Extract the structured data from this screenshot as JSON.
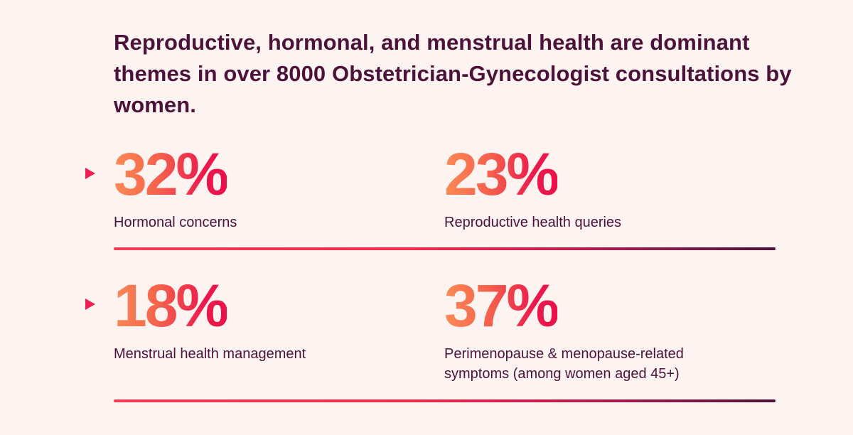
{
  "headline": "Reproductive, hormonal, and menstrual health are dominant themes in over 8000 Obstetrician-Gynecologist consultations by women.",
  "colors": {
    "background": "#fdf4f1",
    "text": "#4c1238",
    "accent": "#ee1d52",
    "gradient_start": "#fb8a55",
    "gradient_end": "#ea1048"
  },
  "stats": [
    {
      "value": "32%",
      "label": "Hormonal concerns"
    },
    {
      "value": "23%",
      "label": "Reproductive health queries"
    },
    {
      "value": "18%",
      "label": "Menstrual health management"
    },
    {
      "value": "37%",
      "label": "Perimenopause & menopause-related symptoms (among women aged 45+)"
    }
  ],
  "icons": {
    "row_marker": "triangle-right-icon"
  }
}
